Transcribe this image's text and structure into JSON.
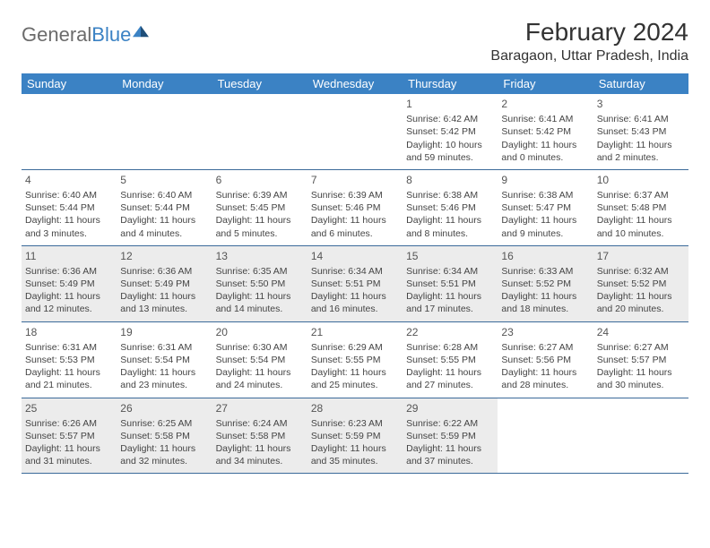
{
  "brand": {
    "part1": "General",
    "part2": "Blue"
  },
  "title": "February 2024",
  "location": "Baragaon, Uttar Pradesh, India",
  "colors": {
    "header_bg": "#3b82c4",
    "header_text": "#ffffff",
    "row_border": "#3b6a9a",
    "shaded_bg": "#ececec",
    "page_bg": "#ffffff",
    "text_dark": "#333333",
    "text_muted": "#555555",
    "logo_gray": "#6b6b6b"
  },
  "weekdays": [
    "Sunday",
    "Monday",
    "Tuesday",
    "Wednesday",
    "Thursday",
    "Friday",
    "Saturday"
  ],
  "weeks": [
    [
      {
        "day": "",
        "sunrise": "",
        "sunset": "",
        "daylight": ""
      },
      {
        "day": "",
        "sunrise": "",
        "sunset": "",
        "daylight": ""
      },
      {
        "day": "",
        "sunrise": "",
        "sunset": "",
        "daylight": ""
      },
      {
        "day": "",
        "sunrise": "",
        "sunset": "",
        "daylight": ""
      },
      {
        "day": "1",
        "sunrise": "Sunrise: 6:42 AM",
        "sunset": "Sunset: 5:42 PM",
        "daylight": "Daylight: 10 hours and 59 minutes."
      },
      {
        "day": "2",
        "sunrise": "Sunrise: 6:41 AM",
        "sunset": "Sunset: 5:42 PM",
        "daylight": "Daylight: 11 hours and 0 minutes."
      },
      {
        "day": "3",
        "sunrise": "Sunrise: 6:41 AM",
        "sunset": "Sunset: 5:43 PM",
        "daylight": "Daylight: 11 hours and 2 minutes."
      }
    ],
    [
      {
        "day": "4",
        "sunrise": "Sunrise: 6:40 AM",
        "sunset": "Sunset: 5:44 PM",
        "daylight": "Daylight: 11 hours and 3 minutes."
      },
      {
        "day": "5",
        "sunrise": "Sunrise: 6:40 AM",
        "sunset": "Sunset: 5:44 PM",
        "daylight": "Daylight: 11 hours and 4 minutes."
      },
      {
        "day": "6",
        "sunrise": "Sunrise: 6:39 AM",
        "sunset": "Sunset: 5:45 PM",
        "daylight": "Daylight: 11 hours and 5 minutes."
      },
      {
        "day": "7",
        "sunrise": "Sunrise: 6:39 AM",
        "sunset": "Sunset: 5:46 PM",
        "daylight": "Daylight: 11 hours and 6 minutes."
      },
      {
        "day": "8",
        "sunrise": "Sunrise: 6:38 AM",
        "sunset": "Sunset: 5:46 PM",
        "daylight": "Daylight: 11 hours and 8 minutes."
      },
      {
        "day": "9",
        "sunrise": "Sunrise: 6:38 AM",
        "sunset": "Sunset: 5:47 PM",
        "daylight": "Daylight: 11 hours and 9 minutes."
      },
      {
        "day": "10",
        "sunrise": "Sunrise: 6:37 AM",
        "sunset": "Sunset: 5:48 PM",
        "daylight": "Daylight: 11 hours and 10 minutes."
      }
    ],
    [
      {
        "day": "11",
        "sunrise": "Sunrise: 6:36 AM",
        "sunset": "Sunset: 5:49 PM",
        "daylight": "Daylight: 11 hours and 12 minutes."
      },
      {
        "day": "12",
        "sunrise": "Sunrise: 6:36 AM",
        "sunset": "Sunset: 5:49 PM",
        "daylight": "Daylight: 11 hours and 13 minutes."
      },
      {
        "day": "13",
        "sunrise": "Sunrise: 6:35 AM",
        "sunset": "Sunset: 5:50 PM",
        "daylight": "Daylight: 11 hours and 14 minutes."
      },
      {
        "day": "14",
        "sunrise": "Sunrise: 6:34 AM",
        "sunset": "Sunset: 5:51 PM",
        "daylight": "Daylight: 11 hours and 16 minutes."
      },
      {
        "day": "15",
        "sunrise": "Sunrise: 6:34 AM",
        "sunset": "Sunset: 5:51 PM",
        "daylight": "Daylight: 11 hours and 17 minutes."
      },
      {
        "day": "16",
        "sunrise": "Sunrise: 6:33 AM",
        "sunset": "Sunset: 5:52 PM",
        "daylight": "Daylight: 11 hours and 18 minutes."
      },
      {
        "day": "17",
        "sunrise": "Sunrise: 6:32 AM",
        "sunset": "Sunset: 5:52 PM",
        "daylight": "Daylight: 11 hours and 20 minutes."
      }
    ],
    [
      {
        "day": "18",
        "sunrise": "Sunrise: 6:31 AM",
        "sunset": "Sunset: 5:53 PM",
        "daylight": "Daylight: 11 hours and 21 minutes."
      },
      {
        "day": "19",
        "sunrise": "Sunrise: 6:31 AM",
        "sunset": "Sunset: 5:54 PM",
        "daylight": "Daylight: 11 hours and 23 minutes."
      },
      {
        "day": "20",
        "sunrise": "Sunrise: 6:30 AM",
        "sunset": "Sunset: 5:54 PM",
        "daylight": "Daylight: 11 hours and 24 minutes."
      },
      {
        "day": "21",
        "sunrise": "Sunrise: 6:29 AM",
        "sunset": "Sunset: 5:55 PM",
        "daylight": "Daylight: 11 hours and 25 minutes."
      },
      {
        "day": "22",
        "sunrise": "Sunrise: 6:28 AM",
        "sunset": "Sunset: 5:55 PM",
        "daylight": "Daylight: 11 hours and 27 minutes."
      },
      {
        "day": "23",
        "sunrise": "Sunrise: 6:27 AM",
        "sunset": "Sunset: 5:56 PM",
        "daylight": "Daylight: 11 hours and 28 minutes."
      },
      {
        "day": "24",
        "sunrise": "Sunrise: 6:27 AM",
        "sunset": "Sunset: 5:57 PM",
        "daylight": "Daylight: 11 hours and 30 minutes."
      }
    ],
    [
      {
        "day": "25",
        "sunrise": "Sunrise: 6:26 AM",
        "sunset": "Sunset: 5:57 PM",
        "daylight": "Daylight: 11 hours and 31 minutes."
      },
      {
        "day": "26",
        "sunrise": "Sunrise: 6:25 AM",
        "sunset": "Sunset: 5:58 PM",
        "daylight": "Daylight: 11 hours and 32 minutes."
      },
      {
        "day": "27",
        "sunrise": "Sunrise: 6:24 AM",
        "sunset": "Sunset: 5:58 PM",
        "daylight": "Daylight: 11 hours and 34 minutes."
      },
      {
        "day": "28",
        "sunrise": "Sunrise: 6:23 AM",
        "sunset": "Sunset: 5:59 PM",
        "daylight": "Daylight: 11 hours and 35 minutes."
      },
      {
        "day": "29",
        "sunrise": "Sunrise: 6:22 AM",
        "sunset": "Sunset: 5:59 PM",
        "daylight": "Daylight: 11 hours and 37 minutes."
      },
      {
        "day": "",
        "sunrise": "",
        "sunset": "",
        "daylight": ""
      },
      {
        "day": "",
        "sunrise": "",
        "sunset": "",
        "daylight": ""
      }
    ]
  ],
  "shaded_rows": [
    2,
    4
  ]
}
